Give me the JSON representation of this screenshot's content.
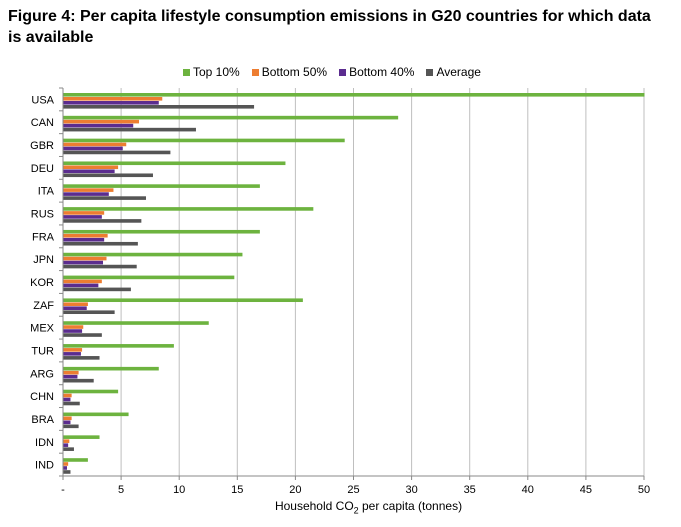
{
  "title": "Figure 4: Per capita lifestyle consumption emissions in G20 countries for which data is available",
  "colors": {
    "top10": "#6db33f",
    "bottom50": "#ed7d31",
    "bottom40": "#5b2c8f",
    "average": "#555555",
    "grid": "#bfbfbf",
    "axis": "#888888"
  },
  "chart_data": {
    "type": "bar",
    "orientation": "horizontal",
    "title": "Figure 4: Per capita lifestyle consumption emissions in G20 countries for which data is available",
    "xlabel": "Household CO₂ per capita (tonnes)",
    "xlabel_parts": {
      "before": "Household CO",
      "sub": "2",
      "after": " per capita (tonnes)"
    },
    "ylabel": "",
    "xlim": [
      0,
      50
    ],
    "xticks": [
      "-",
      "5",
      "10",
      "15",
      "20",
      "25",
      "30",
      "35",
      "40",
      "45",
      "50"
    ],
    "grid": true,
    "legend_position": "top",
    "categories": [
      "USA",
      "CAN",
      "GBR",
      "DEU",
      "ITA",
      "RUS",
      "FRA",
      "JPN",
      "KOR",
      "ZAF",
      "MEX",
      "TUR",
      "ARG",
      "CHN",
      "BRA",
      "IDN",
      "IND"
    ],
    "series": [
      {
        "name": "Top 10%",
        "key": "top10",
        "values": [
          50,
          28.8,
          24.2,
          19.1,
          16.9,
          21.5,
          16.9,
          15.4,
          14.7,
          20.6,
          12.5,
          9.5,
          8.2,
          4.7,
          5.6,
          3.1,
          2.1
        ]
      },
      {
        "name": "Bottom 50%",
        "key": "bottom50",
        "values": [
          8.5,
          6.5,
          5.4,
          4.7,
          4.3,
          3.5,
          3.8,
          3.7,
          3.3,
          2.1,
          1.7,
          1.6,
          1.3,
          0.7,
          0.7,
          0.5,
          0.4
        ]
      },
      {
        "name": "Bottom 40%",
        "key": "bottom40",
        "values": [
          8.2,
          6.0,
          5.1,
          4.4,
          3.9,
          3.3,
          3.5,
          3.4,
          3.0,
          2.0,
          1.6,
          1.5,
          1.2,
          0.6,
          0.6,
          0.4,
          0.3
        ]
      },
      {
        "name": "Average",
        "key": "average",
        "values": [
          16.4,
          11.4,
          9.2,
          7.7,
          7.1,
          6.7,
          6.4,
          6.3,
          5.8,
          4.4,
          3.3,
          3.1,
          2.6,
          1.4,
          1.3,
          0.9,
          0.6
        ]
      }
    ]
  }
}
